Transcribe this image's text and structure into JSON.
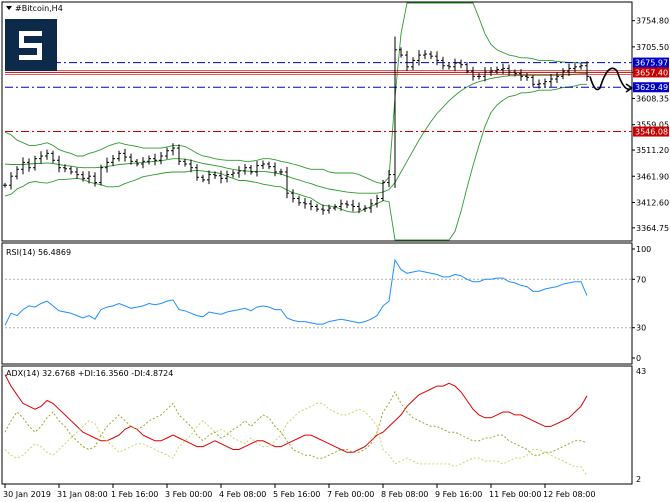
{
  "symbol_title": "#Bitcoin,H4",
  "x_tick_labels": [
    "30 Jan 2019",
    "31 Jan 08:00",
    "1 Feb 16:00",
    "3 Feb 00:00",
    "4 Feb 08:00",
    "5 Feb 16:00",
    "7 Feb 00:00",
    "8 Feb 08:00",
    "9 Feb 16:00",
    "11 Feb 00:00",
    "12 Feb 08:00"
  ],
  "colors": {
    "candle": "#000000",
    "bollinger": "#2e9b2e",
    "level_blue": "#0000c8",
    "level_red": "#c80000",
    "rsi_line": "#1e90ff",
    "adx_line": "#e00000",
    "di_plus": "#9aa830",
    "di_minus": "#c8d870",
    "grid_dotted": "#b0b0b0",
    "border": "#000000"
  },
  "chart_data": [
    {
      "type": "candlestick",
      "panel": "price",
      "title": "#Bitcoin,H4",
      "ylim": [
        3340,
        3790
      ],
      "y_ticks": [
        3364.75,
        3412.6,
        3461.9,
        3511.2,
        3559.05,
        3608.35,
        3657.65,
        3705.5,
        3754.8
      ],
      "y_tick_labels": [
        "3364.75",
        "3412.60",
        "3461.90",
        "3511.20",
        "3559.05",
        "3608.35",
        "3657.65",
        "3705.50",
        "3754.80"
      ],
      "indicator": "Bollinger Bands",
      "close": [
        3445,
        3462,
        3475,
        3488,
        3478,
        3495,
        3500,
        3505,
        3492,
        3478,
        3476,
        3470,
        3465,
        3458,
        3462,
        3450,
        3478,
        3488,
        3495,
        3505,
        3498,
        3490,
        3485,
        3490,
        3495,
        3492,
        3500,
        3510,
        3515,
        3490,
        3485,
        3478,
        3460,
        3455,
        3465,
        3463,
        3458,
        3465,
        3468,
        3472,
        3478,
        3470,
        3482,
        3485,
        3480,
        3470,
        3470,
        3430,
        3420,
        3412,
        3410,
        3405,
        3400,
        3398,
        3402,
        3405,
        3410,
        3408,
        3405,
        3400,
        3402,
        3410,
        3420,
        3450,
        3465,
        3700,
        3690,
        3668,
        3680,
        3690,
        3692,
        3688,
        3680,
        3670,
        3668,
        3675,
        3672,
        3660,
        3650,
        3650,
        3658,
        3660,
        3663,
        3665,
        3658,
        3655,
        3650,
        3648,
        3635,
        3636,
        3640,
        3645,
        3650,
        3660,
        3665,
        3668,
        3670,
        3650
      ],
      "upper_band": [
        3545,
        3540,
        3530,
        3525,
        3520,
        3520,
        3522,
        3525,
        3520,
        3512,
        3508,
        3505,
        3500,
        3500,
        3505,
        3508,
        3512,
        3518,
        3522,
        3525,
        3522,
        3520,
        3518,
        3515,
        3515,
        3515,
        3515,
        3517,
        3520,
        3520,
        3518,
        3512,
        3505,
        3500,
        3498,
        3495,
        3493,
        3492,
        3492,
        3492,
        3490,
        3490,
        3492,
        3495,
        3495,
        3493,
        3490,
        3488,
        3485,
        3482,
        3478,
        3475,
        3475,
        3475,
        3470,
        3468,
        3468,
        3468,
        3468,
        3465,
        3460,
        3455,
        3450,
        3448,
        3460,
        3610,
        3730,
        3800,
        3830,
        3850,
        3870,
        3880,
        3885,
        3885,
        3880,
        3870,
        3850,
        3820,
        3790,
        3760,
        3730,
        3710,
        3700,
        3695,
        3690,
        3688,
        3685,
        3685,
        3683,
        3680,
        3680,
        3680,
        3678,
        3677,
        3676,
        3676,
        3675,
        3675
      ],
      "middle_band": [
        3485,
        3484,
        3484,
        3484,
        3485,
        3486,
        3486,
        3487,
        3486,
        3484,
        3482,
        3481,
        3479,
        3478,
        3478,
        3478,
        3479,
        3480,
        3482,
        3484,
        3485,
        3486,
        3487,
        3488,
        3489,
        3490,
        3491,
        3493,
        3495,
        3495,
        3494,
        3492,
        3489,
        3486,
        3484,
        3482,
        3480,
        3477,
        3475,
        3473,
        3472,
        3471,
        3471,
        3471,
        3470,
        3468,
        3466,
        3462,
        3458,
        3455,
        3451,
        3448,
        3444,
        3441,
        3438,
        3436,
        3434,
        3432,
        3431,
        3430,
        3430,
        3430,
        3430,
        3432,
        3437,
        3450,
        3470,
        3490,
        3510,
        3530,
        3548,
        3565,
        3580,
        3592,
        3604,
        3614,
        3623,
        3630,
        3636,
        3640,
        3643,
        3646,
        3648,
        3650,
        3651,
        3651,
        3652,
        3652,
        3652,
        3652,
        3652,
        3652,
        3652,
        3653,
        3653,
        3654,
        3655,
        3655
      ],
      "lower_band": [
        3425,
        3428,
        3438,
        3443,
        3450,
        3452,
        3450,
        3449,
        3452,
        3456,
        3456,
        3457,
        3458,
        3456,
        3451,
        3448,
        3446,
        3442,
        3442,
        3443,
        3448,
        3452,
        3456,
        3461,
        3463,
        3465,
        3467,
        3469,
        3470,
        3470,
        3470,
        3472,
        3473,
        3472,
        3470,
        3469,
        3467,
        3462,
        3458,
        3454,
        3454,
        3452,
        3450,
        3447,
        3445,
        3443,
        3442,
        3436,
        3431,
        3428,
        3424,
        3421,
        3413,
        3407,
        3406,
        3404,
        3400,
        3396,
        3394,
        3395,
        3400,
        3405,
        3410,
        3416,
        3414,
        3290,
        3210,
        3180,
        3190,
        3210,
        3226,
        3250,
        3275,
        3299,
        3328,
        3358,
        3396,
        3440,
        3482,
        3520,
        3556,
        3582,
        3596,
        3605,
        3612,
        3614,
        3619,
        3619,
        3621,
        3624,
        3624,
        3624,
        3626,
        3629,
        3630,
        3632,
        3635,
        3635
      ]
    },
    {
      "type": "line",
      "panel": "price",
      "name": "horizontal levels",
      "levels": [
        {
          "value": 3675.97,
          "label": "3675.97",
          "style": "dashdot",
          "color": "#0000c8"
        },
        {
          "value": 3657.4,
          "label": "3657.40",
          "style": "solid",
          "color": "#c80000"
        },
        {
          "value": 3629.49,
          "label": "3629.49",
          "style": "dashdot",
          "color": "#0000c8"
        },
        {
          "value": 3546.08,
          "label": "3546.08",
          "style": "dashdot",
          "color": "#c80000"
        }
      ],
      "forecast_path": [
        3650,
        3628,
        3660,
        3628
      ]
    },
    {
      "type": "line",
      "panel": "rsi",
      "title": "RSI(14) 56.4869",
      "ylim": [
        0,
        100
      ],
      "y_ticks": [
        0,
        30,
        70,
        100
      ],
      "y_tick_labels": [
        "0",
        "30",
        "70",
        "100"
      ],
      "levels": [
        30,
        70
      ],
      "series": [
        {
          "name": "RSI(14)",
          "values": [
            32,
            42,
            40,
            45,
            48,
            47,
            50,
            52,
            48,
            44,
            43,
            42,
            40,
            38,
            40,
            37,
            45,
            47,
            48,
            50,
            48,
            46,
            47,
            48,
            50,
            49,
            50,
            52,
            53,
            45,
            44,
            42,
            40,
            39,
            43,
            42,
            41,
            43,
            44,
            45,
            46,
            44,
            47,
            48,
            47,
            45,
            45,
            38,
            36,
            35,
            35,
            34,
            33,
            33,
            35,
            36,
            37,
            36,
            35,
            34,
            35,
            37,
            40,
            48,
            52,
            86,
            78,
            75,
            76,
            77,
            76,
            75,
            74,
            72,
            72,
            74,
            73,
            70,
            68,
            68,
            70,
            70,
            71,
            71,
            68,
            67,
            65,
            64,
            60,
            60,
            62,
            63,
            64,
            66,
            67,
            68,
            68,
            56.49
          ]
        }
      ]
    },
    {
      "type": "line",
      "panel": "adx",
      "title": "ADX(14) 32.6768 +DI:16.3560 -DI:4.8724",
      "y_tick_labels": [
        "43",
        "2"
      ],
      "ylim": [
        2,
        43
      ],
      "series": [
        {
          "name": "ADX(14)",
          "values": [
            40,
            36,
            33,
            30,
            29,
            28,
            29,
            31,
            30,
            28,
            26,
            24,
            22,
            20,
            19,
            18,
            17,
            17,
            18,
            19,
            21,
            22,
            21,
            19,
            18,
            17,
            17,
            18,
            19,
            18,
            17,
            16,
            15,
            15,
            16,
            17,
            16,
            15,
            14,
            14,
            15,
            16,
            17,
            17,
            16,
            15,
            15,
            16,
            17,
            18,
            19,
            19,
            18,
            17,
            16,
            15,
            14,
            13,
            13,
            14,
            15,
            17,
            19,
            20,
            22,
            24,
            26,
            29,
            31,
            33,
            34,
            35,
            36,
            36,
            37,
            36,
            34,
            31,
            28,
            26,
            25,
            25,
            26,
            27,
            27,
            26,
            26,
            25,
            24,
            23,
            22,
            22,
            23,
            24,
            25,
            27,
            29,
            32.68
          ]
        },
        {
          "name": "+DI",
          "values": [
            20,
            24,
            27,
            25,
            22,
            20,
            22,
            25,
            27,
            24,
            22,
            19,
            17,
            15,
            14,
            15,
            19,
            22,
            24,
            26,
            24,
            22,
            21,
            22,
            24,
            25,
            26,
            28,
            30,
            26,
            24,
            22,
            19,
            17,
            19,
            20,
            18,
            19,
            21,
            22,
            24,
            22,
            24,
            26,
            25,
            22,
            20,
            17,
            14,
            13,
            12,
            12,
            11,
            11,
            12,
            13,
            14,
            14,
            13,
            13,
            14,
            16,
            20,
            27,
            30,
            34,
            30,
            27,
            25,
            24,
            23,
            22,
            22,
            21,
            20,
            20,
            19,
            18,
            17,
            17,
            18,
            18,
            19,
            19,
            17,
            16,
            15,
            14,
            12,
            12,
            13,
            13,
            14,
            15,
            16,
            17,
            17,
            16.36
          ]
        },
        {
          "name": "-DI",
          "values": [
            14,
            12,
            11,
            12,
            14,
            16,
            15,
            13,
            12,
            14,
            16,
            18,
            20,
            22,
            24,
            23,
            19,
            17,
            15,
            13,
            14,
            15,
            16,
            16,
            15,
            14,
            13,
            12,
            11,
            15,
            17,
            19,
            22,
            24,
            22,
            20,
            21,
            20,
            18,
            17,
            16,
            18,
            16,
            15,
            15,
            17,
            19,
            23,
            25,
            27,
            28,
            29,
            30,
            30,
            28,
            27,
            26,
            26,
            27,
            28,
            27,
            25,
            22,
            14,
            12,
            9,
            10,
            11,
            10,
            9,
            9,
            9,
            9,
            9,
            9,
            8,
            9,
            10,
            11,
            11,
            10,
            10,
            10,
            9,
            10,
            11,
            11,
            12,
            14,
            14,
            13,
            12,
            11,
            10,
            9,
            8,
            8,
            4.87
          ]
        }
      ]
    }
  ]
}
